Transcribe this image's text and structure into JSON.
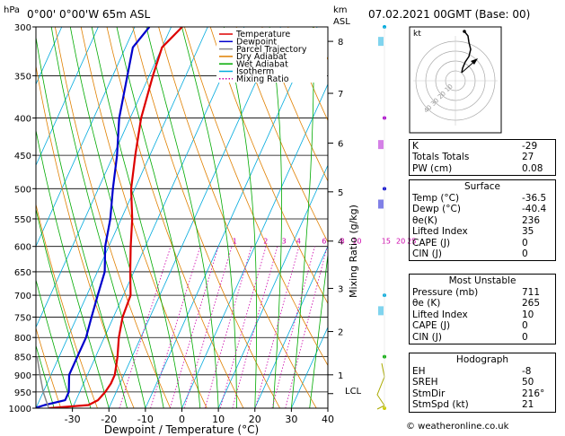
{
  "header": {
    "location": "0°00' 0°00'W 65m ASL",
    "datetime": "07.02.2021 00GMT (Base: 00)",
    "hpa_label": "hPa",
    "km_label": "km",
    "asl_label": "ASL"
  },
  "chart_data": {
    "type": "line",
    "xlabel": "Dewpoint / Temperature (°C)",
    "ylabel_right": "Mixing Ratio (g/kg)",
    "x_ticks": [
      -30,
      -20,
      -10,
      0,
      10,
      20,
      30,
      40
    ],
    "x_range": [
      -40,
      40
    ],
    "y_range_hpa": [
      1000,
      300
    ],
    "y_scale": "log",
    "pressure_ticks": [
      300,
      350,
      400,
      450,
      500,
      550,
      600,
      650,
      700,
      750,
      800,
      850,
      900,
      950,
      1000
    ],
    "height_km_ticks": [
      {
        "km": "1",
        "p": 900
      },
      {
        "km": "2",
        "p": 785
      },
      {
        "km": "3",
        "p": 685
      },
      {
        "km": "4",
        "p": 590
      },
      {
        "km": "5",
        "p": 505
      },
      {
        "km": "6",
        "p": 433
      },
      {
        "km": "7",
        "p": 370
      },
      {
        "km": "8",
        "p": 314
      }
    ],
    "lcl": {
      "label": "LCL",
      "p": 955
    },
    "mixing_ratio_labels": [
      "1",
      "2",
      "3",
      "4",
      "6",
      "8",
      "10",
      "15",
      "20",
      "25"
    ],
    "mixing_ratio_label_x": [
      -5.5,
      3,
      8,
      12,
      19,
      24,
      28,
      36,
      40,
      43
    ],
    "legend": [
      {
        "name": "Temperature",
        "color": "#dd0000"
      },
      {
        "name": "Dewpoint",
        "color": "#0000cc"
      },
      {
        "name": "Parcel Trajectory",
        "color": "#888888"
      },
      {
        "name": "Dry Adiabat",
        "color": "#e08000"
      },
      {
        "name": "Wet Adiabat",
        "color": "#00aa00"
      },
      {
        "name": "Isotherm",
        "color": "#00aadd"
      },
      {
        "name": "Mixing Ratio",
        "color": "#cc00aa"
      }
    ],
    "series": [
      {
        "name": "Temperature",
        "color": "#dd0000",
        "points": [
          [
            1000,
            -36.5
          ],
          [
            990,
            -26
          ],
          [
            975,
            -24
          ],
          [
            950,
            -23
          ],
          [
            925,
            -22.5
          ],
          [
            900,
            -22.5
          ],
          [
            850,
            -24
          ],
          [
            800,
            -26
          ],
          [
            750,
            -27.5
          ],
          [
            700,
            -28
          ],
          [
            650,
            -31
          ],
          [
            600,
            -34
          ],
          [
            550,
            -37
          ],
          [
            500,
            -41
          ],
          [
            450,
            -44
          ],
          [
            400,
            -47
          ],
          [
            350,
            -49
          ],
          [
            320,
            -50
          ],
          [
            300,
            -47
          ]
        ]
      },
      {
        "name": "Dewpoint",
        "color": "#0000cc",
        "points": [
          [
            1000,
            -40.4
          ],
          [
            990,
            -38
          ],
          [
            975,
            -33
          ],
          [
            950,
            -33
          ],
          [
            925,
            -34
          ],
          [
            900,
            -35
          ],
          [
            850,
            -35
          ],
          [
            800,
            -35
          ],
          [
            750,
            -36
          ],
          [
            700,
            -37
          ],
          [
            650,
            -38
          ],
          [
            600,
            -41
          ],
          [
            550,
            -43
          ],
          [
            500,
            -46
          ],
          [
            450,
            -49
          ],
          [
            400,
            -53
          ],
          [
            350,
            -56
          ],
          [
            320,
            -58
          ],
          [
            300,
            -56
          ]
        ]
      },
      {
        "name": "Parcel Trajectory",
        "color": "#888888",
        "points": [
          [
            1000,
            -36.5
          ],
          [
            950,
            -40
          ],
          [
            900,
            -43
          ],
          [
            850,
            -46
          ]
        ]
      }
    ]
  },
  "hodograph": {
    "label": "kt",
    "ring_labels": [
      "10",
      "20",
      "30",
      "40"
    ]
  },
  "indices": [
    {
      "k": "K",
      "v": "-29"
    },
    {
      "k": "Totals Totals",
      "v": "27"
    },
    {
      "k": "PW (cm)",
      "v": "0.08"
    }
  ],
  "surface": {
    "title": "Surface",
    "rows": [
      {
        "k": "Temp (°C)",
        "v": "-36.5"
      },
      {
        "k": "Dewp (°C)",
        "v": "-40.4"
      },
      {
        "k": "θe(K)",
        "v": "236"
      },
      {
        "k": "Lifted Index",
        "v": "35"
      },
      {
        "k": "CAPE (J)",
        "v": "0"
      },
      {
        "k": "CIN (J)",
        "v": "0"
      }
    ]
  },
  "most_unstable": {
    "title": "Most Unstable",
    "rows": [
      {
        "k": "Pressure (mb)",
        "v": "711"
      },
      {
        "k": "θe (K)",
        "v": "265"
      },
      {
        "k": "Lifted Index",
        "v": "10"
      },
      {
        "k": "CAPE (J)",
        "v": "0"
      },
      {
        "k": "CIN (J)",
        "v": "0"
      }
    ]
  },
  "hodograph_table": {
    "title": "Hodograph",
    "rows": [
      {
        "k": "EH",
        "v": "-8"
      },
      {
        "k": "SREH",
        "v": "50"
      },
      {
        "k": "StmDir",
        "v": "216°"
      },
      {
        "k": "StmSpd (kt)",
        "v": "21"
      }
    ]
  },
  "footer": "© weatheronline.co.uk"
}
